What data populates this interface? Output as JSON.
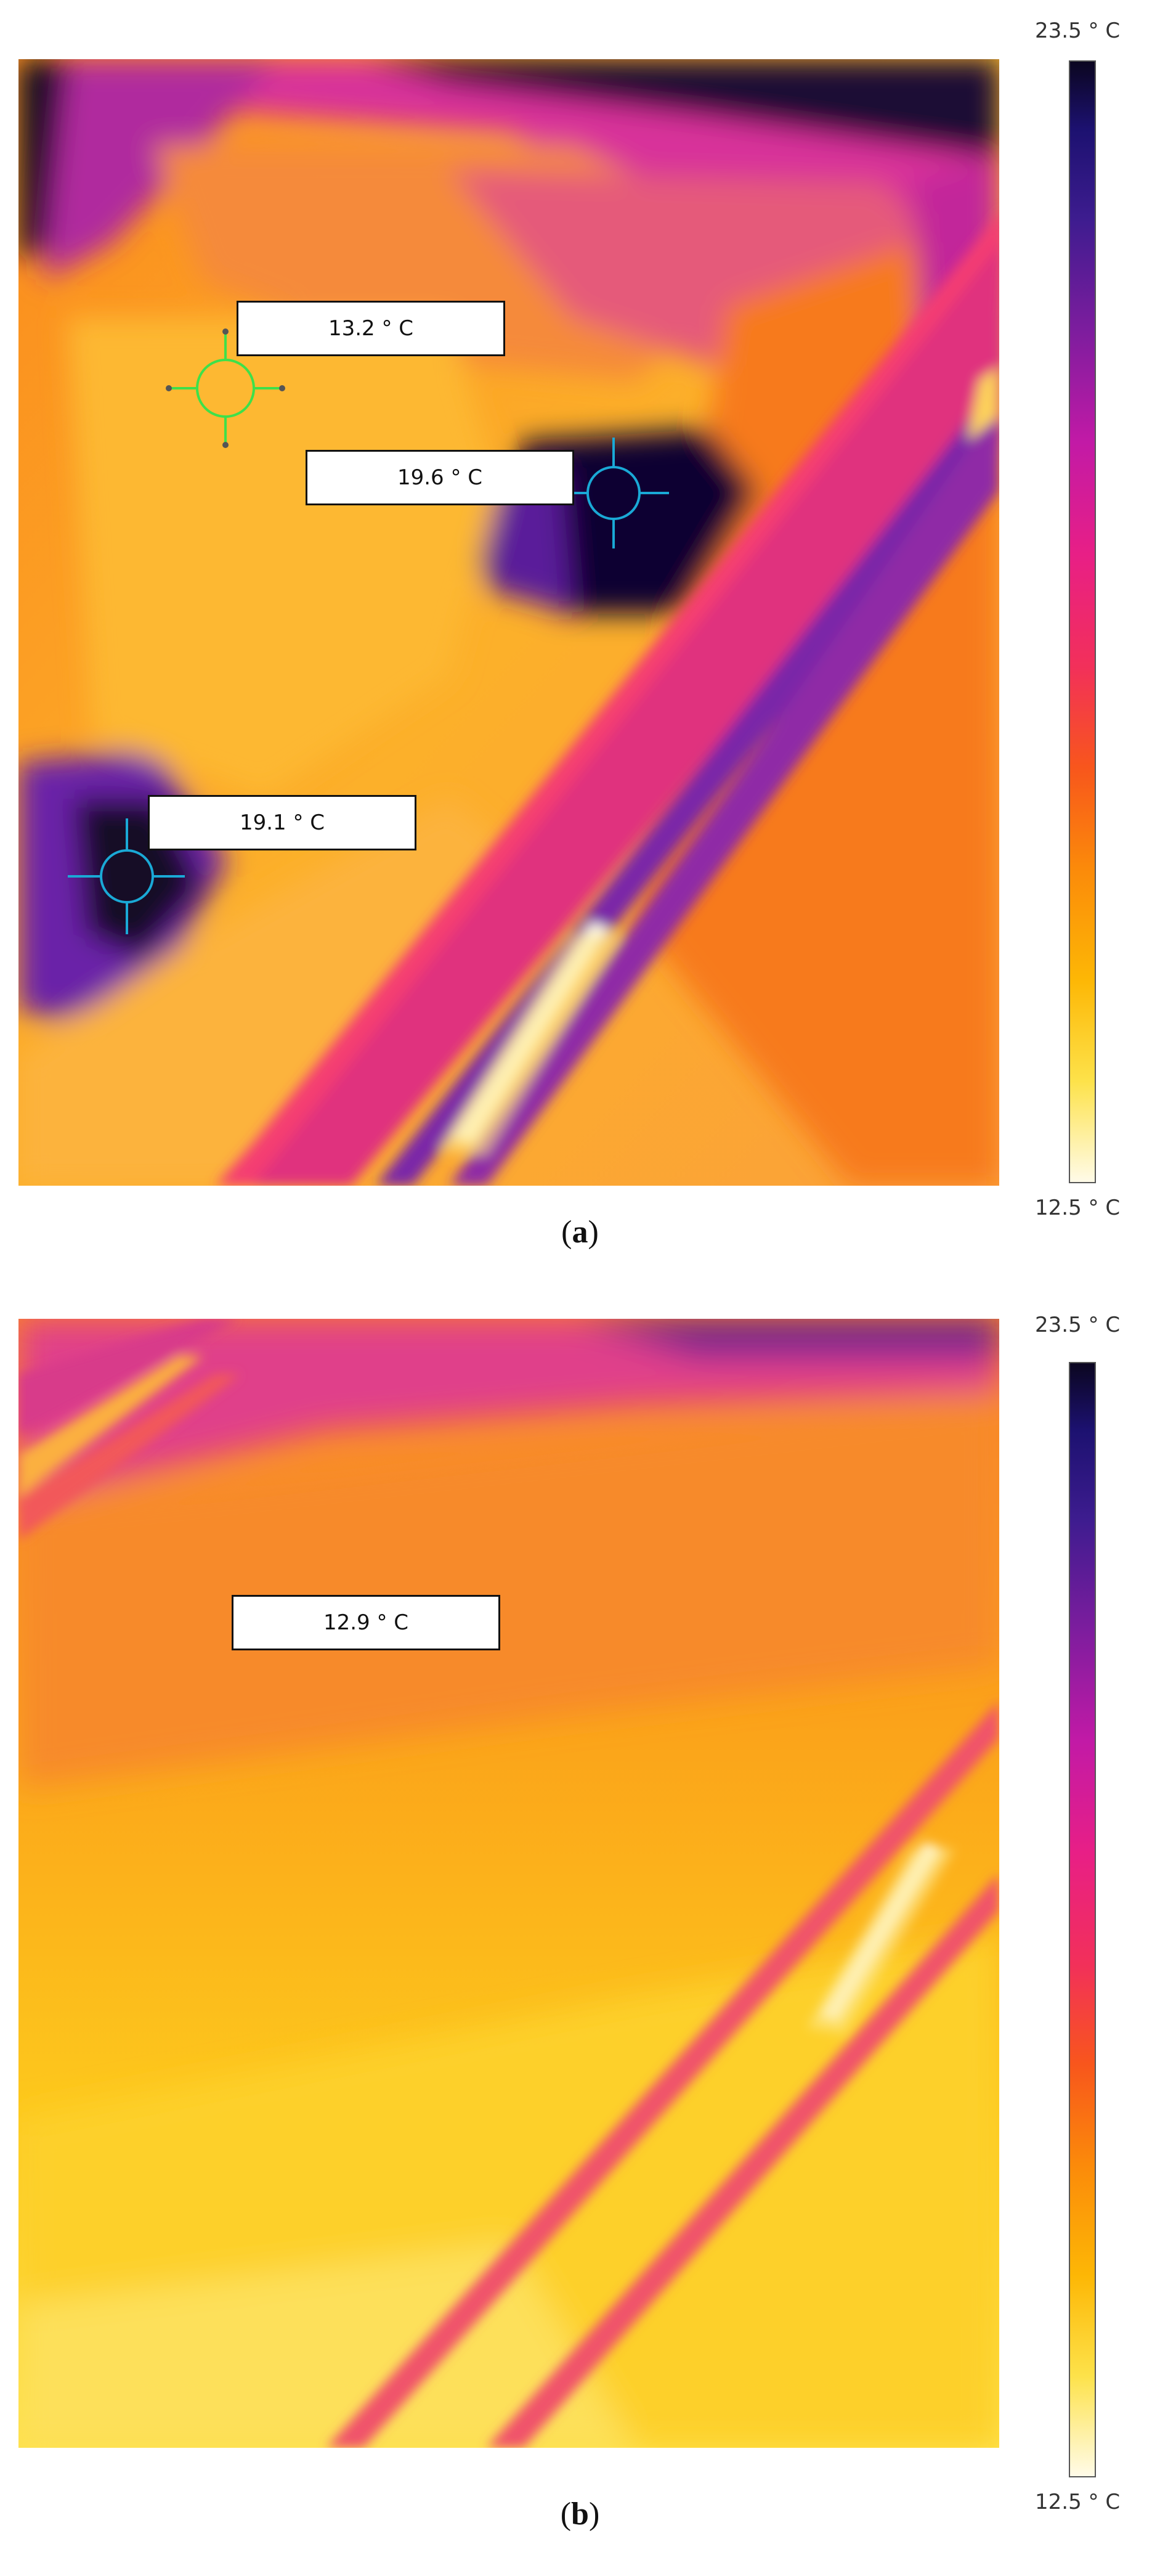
{
  "panel_a": {
    "caption_open": "(",
    "caption_letter": "a",
    "caption_close": ")",
    "scale_max": "23.5 ° C",
    "scale_min": "12.5 ° C",
    "spots": [
      {
        "label": "13.2 ° C",
        "marker_color": "#3ee04a"
      },
      {
        "label": "19.6 ° C",
        "marker_color": "#1aa9d6"
      },
      {
        "label": "19.1 ° C",
        "marker_color": "#1aa9d6"
      }
    ]
  },
  "panel_b": {
    "caption_open": "(",
    "caption_letter": "b",
    "caption_close": ")",
    "scale_max": "23.5 ° C",
    "scale_min": "12.5 ° C",
    "spots": [
      {
        "label": "12.9 ° C"
      }
    ]
  },
  "palette": {
    "hot": "#0b0620",
    "warm": "#c21aa6",
    "mid": "#f8561c",
    "cool": "#fdb705",
    "cold": "#fffbe8"
  }
}
